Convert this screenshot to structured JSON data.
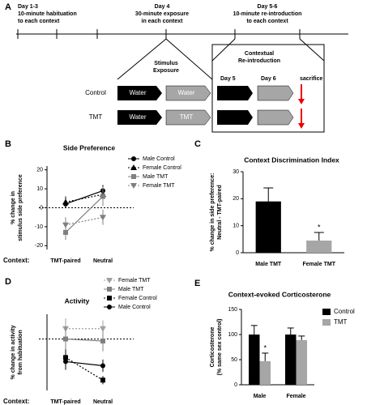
{
  "diagram": {
    "panel": "A",
    "timeline": [
      {
        "day": "Day 1-3",
        "text": [
          "10-minute habituation",
          "to each context"
        ]
      },
      {
        "day": "Day 4",
        "text": [
          "30-minute exposure",
          "in each context"
        ]
      },
      {
        "day": "Day 5-6",
        "text": [
          "10-minute re-introduction",
          "to each context"
        ]
      }
    ],
    "stimulus_title": [
      "Stimulus",
      "Exposure"
    ],
    "reintro_title": [
      "Contextual",
      "Re-introduction"
    ],
    "days": [
      "Day 5",
      "Day 6"
    ],
    "sacrifice": "sacrifice",
    "rows": [
      {
        "label": "Control",
        "boxes": [
          "Water",
          "Water"
        ]
      },
      {
        "label": "TMT",
        "boxes": [
          "Water",
          "TMT"
        ]
      }
    ]
  },
  "chart_data": [
    {
      "type": "line",
      "panel": "B",
      "title": "Side Preference",
      "ylabel": [
        "% change in",
        "stimulus side preference"
      ],
      "xlabel": "Context:",
      "categories": [
        "TMT-paired",
        "Neutral"
      ],
      "ylim": [
        -22,
        22
      ],
      "yticks": [
        -20,
        -10,
        0,
        10,
        20
      ],
      "ref_line": 0,
      "series": [
        {
          "name": "Male Control",
          "color": "#000000",
          "marker": "circle",
          "dashed": false,
          "values": [
            2,
            9
          ],
          "errors": [
            2,
            3
          ]
        },
        {
          "name": "Female Control",
          "color": "#000000",
          "marker": "triangle",
          "dashed": true,
          "values": [
            3,
            7
          ],
          "errors": [
            3,
            4
          ]
        },
        {
          "name": "Male TMT",
          "color": "#808080",
          "marker": "square",
          "dashed": false,
          "values": [
            -13,
            6
          ],
          "errors": [
            4,
            5
          ]
        },
        {
          "name": "Female TMT",
          "color": "#808080",
          "marker": "triangle-down",
          "dashed": true,
          "values": [
            -9,
            -5
          ],
          "errors": [
            4,
            4
          ]
        }
      ]
    },
    {
      "type": "bar",
      "panel": "C",
      "title": "Context  Discrimination Index",
      "ylabel": [
        "% change in side preference:",
        "Neutral - TMT-paired"
      ],
      "categories": [
        "Male TMT",
        "Female TMT"
      ],
      "values": [
        19,
        4.5
      ],
      "errors": [
        5,
        3
      ],
      "colors": [
        "#000000",
        "#a6a6a6"
      ],
      "ylim": [
        0,
        30
      ],
      "yticks": [
        0,
        10,
        20,
        30
      ],
      "annotation": "*"
    },
    {
      "type": "line",
      "panel": "D",
      "title": "Activity",
      "ylabel": [
        "% change in activity",
        "from habituation"
      ],
      "xlabel": "Context:",
      "categories": [
        "TMT-paired",
        "Neutral"
      ],
      "ylim": [
        -25,
        12
      ],
      "ref_line": 0,
      "series": [
        {
          "name": "Female TMT",
          "color": "#a0a0a0",
          "marker": "triangle-down",
          "dashed": true,
          "values": [
            5,
            5
          ],
          "errors": [
            5,
            4
          ]
        },
        {
          "name": "Male TMT",
          "color": "#808080",
          "marker": "square",
          "dashed": false,
          "values": [
            0,
            -1
          ],
          "errors": [
            6,
            5
          ]
        },
        {
          "name": "Female Control",
          "color": "#000000",
          "marker": "square",
          "dashed": true,
          "values": [
            -9,
            -20
          ],
          "errors": [
            4,
            2
          ]
        },
        {
          "name": "Male Control",
          "color": "#000000",
          "marker": "circle",
          "dashed": false,
          "values": [
            -11,
            -13
          ],
          "errors": [
            4,
            3
          ]
        }
      ]
    },
    {
      "type": "grouped_bar",
      "panel": "E",
      "title": "Context-evoked Corticosterone",
      "ylabel": [
        "Corticosterone",
        "(% same sex control)"
      ],
      "categories": [
        "Male",
        "Female"
      ],
      "ylim": [
        0,
        150
      ],
      "yticks": [
        0,
        50,
        100,
        150
      ],
      "annotation": "*",
      "series": [
        {
          "name": "Control",
          "color": "#000000",
          "values": [
            100,
            100
          ],
          "errors": [
            18,
            13
          ]
        },
        {
          "name": "TMT",
          "color": "#a6a6a6",
          "values": [
            47,
            89
          ],
          "errors": [
            16,
            8
          ]
        }
      ]
    }
  ]
}
